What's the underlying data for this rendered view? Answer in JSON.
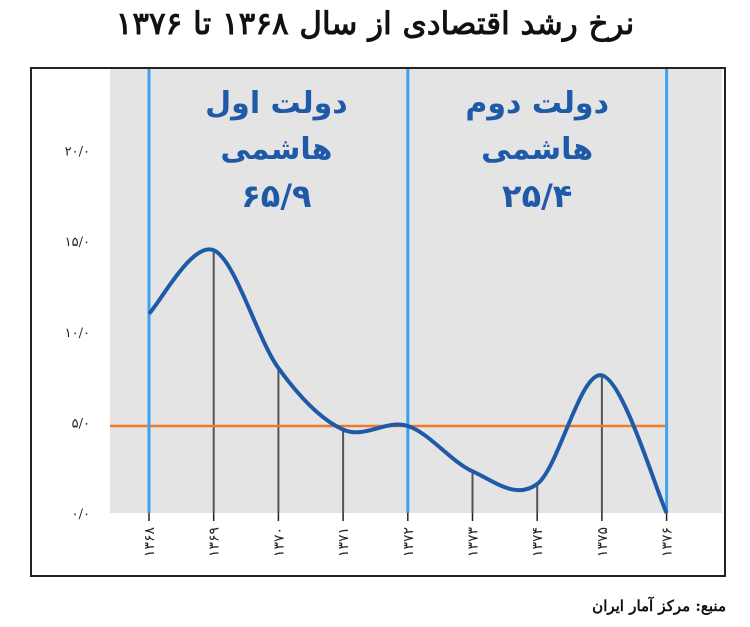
{
  "chart_data": {
    "type": "line",
    "title": "نرخ رشد اقتصادی از سال ۱۳۶۸ تا ۱۳۷۶",
    "x": [
      "۱۳۶۸",
      "۱۳۶۹",
      "۱۳۷۰",
      "۱۳۷۱",
      "۱۳۷۲",
      "۱۳۷۳",
      "۱۳۷۴",
      "۱۳۷۵",
      "۱۳۷۶"
    ],
    "values": [
      11.0,
      14.5,
      8.0,
      4.6,
      4.8,
      2.3,
      1.6,
      7.6,
      0.0
    ],
    "ytick_labels": [
      "۰/۰",
      "۵/۰",
      "۱۰/۰",
      "۱۵/۰",
      "۲۰/۰"
    ],
    "ylim": [
      0,
      24.5
    ],
    "reference_line": {
      "value": 4.8,
      "color": "#f07828"
    },
    "periods": [
      {
        "label_line1": "دولت اول",
        "label_line2": "هاشمی",
        "value_label": "۶۵/۹",
        "from_index": 0,
        "to_index": 4
      },
      {
        "label_line1": "دولت دوم",
        "label_line2": "هاشمی",
        "value_label": "۲۵/۴",
        "from_index": 4,
        "to_index": 8
      }
    ],
    "colors": {
      "curve": "#1f5aa8",
      "period_divider": "#3ea0f0",
      "period_text": "#1f5aa8",
      "plot_bg": "#e4e4e4",
      "drop_lines": "#555555"
    },
    "grid": false
  },
  "source": "منبع: مرکز آمار ایران"
}
